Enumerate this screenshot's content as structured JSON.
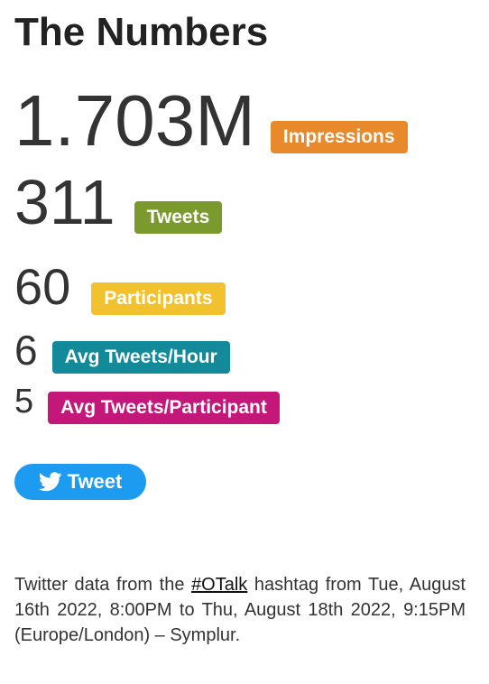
{
  "page": {
    "title": "The Numbers"
  },
  "stats": [
    {
      "value": "1.703M",
      "label": "Impressions",
      "color": "#e8892b"
    },
    {
      "value": "311",
      "label": "Tweets",
      "color": "#7a9a2d"
    },
    {
      "value": "60",
      "label": "Participants",
      "color": "#f2c12e"
    },
    {
      "value": "6",
      "label": "Avg Tweets/Hour",
      "color": "#138a9a"
    },
    {
      "value": "5",
      "label": "Avg Tweets/Participant",
      "color": "#c3187a"
    }
  ],
  "tweet_button": {
    "label": "Tweet",
    "icon": "twitter-bird-icon",
    "color": "#1d9bf0"
  },
  "footer": {
    "prefix": "Twitter data from the ",
    "hashtag": "#OTalk",
    "suffix": " hashtag from Tue, August 16th 2022, 8:00PM to Thu, August 18th 2022, 9:15PM (Europe/London) – Symplur."
  }
}
